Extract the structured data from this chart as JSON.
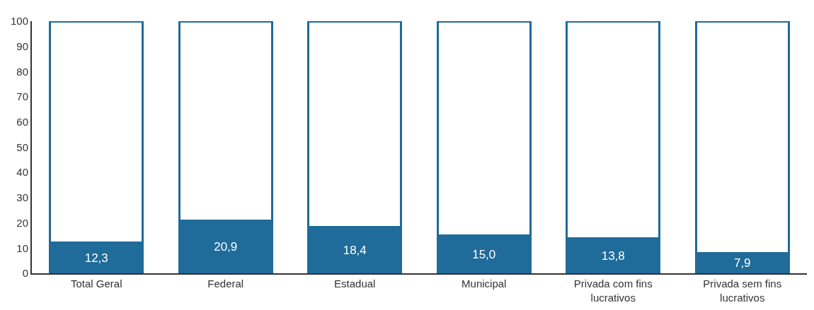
{
  "chart_data": {
    "type": "bar",
    "stacked": true,
    "categories": [
      "Total Geral",
      "Federal",
      "Estadual",
      "Municipal",
      "Privada com fins lucrativos",
      "Privada sem fins lucrativos"
    ],
    "series": [
      {
        "color": "#1f6b9a",
        "values": [
          12.3,
          20.9,
          18.4,
          15.0,
          13.8,
          7.9
        ],
        "value_labels": [
          "12,3",
          "20,9",
          "18,4",
          "15,0",
          "13,8",
          "7,9"
        ]
      },
      {
        "color": "#ffffff",
        "values": [
          87.7,
          79.1,
          81.6,
          85.0,
          86.2,
          92.1
        ]
      }
    ],
    "ylim": [
      0,
      100
    ],
    "yticks": [
      0,
      10,
      20,
      30,
      40,
      50,
      60,
      70,
      80,
      90,
      100
    ]
  }
}
